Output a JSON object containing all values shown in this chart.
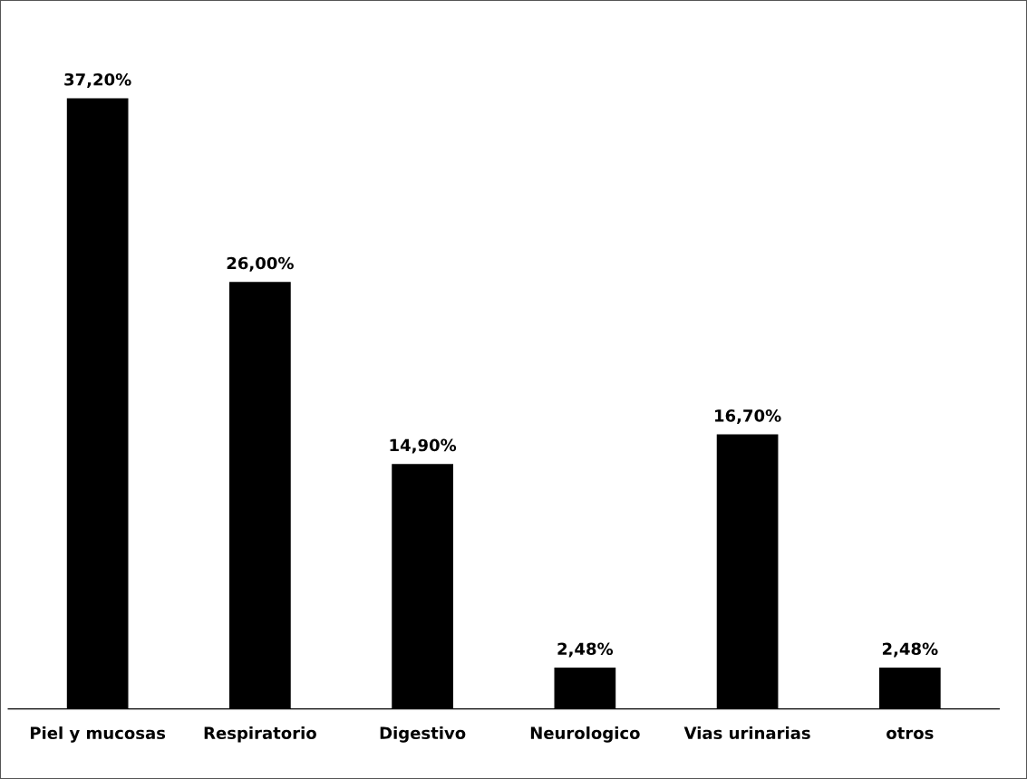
{
  "chart_data": {
    "type": "bar",
    "categories": [
      "Piel y mucosas",
      "Respiratorio",
      "Digestivo",
      "Neurologico",
      "Vias urinarias",
      "otros"
    ],
    "values": [
      37.2,
      26.0,
      14.9,
      2.48,
      16.7,
      2.48
    ],
    "value_labels": [
      "37,20%",
      "26,00%",
      "14,90%",
      "2,48%",
      "16,70%",
      "2,48%"
    ],
    "color": "#000000",
    "grid": false,
    "legend": false,
    "tick_labels": "x"
  }
}
